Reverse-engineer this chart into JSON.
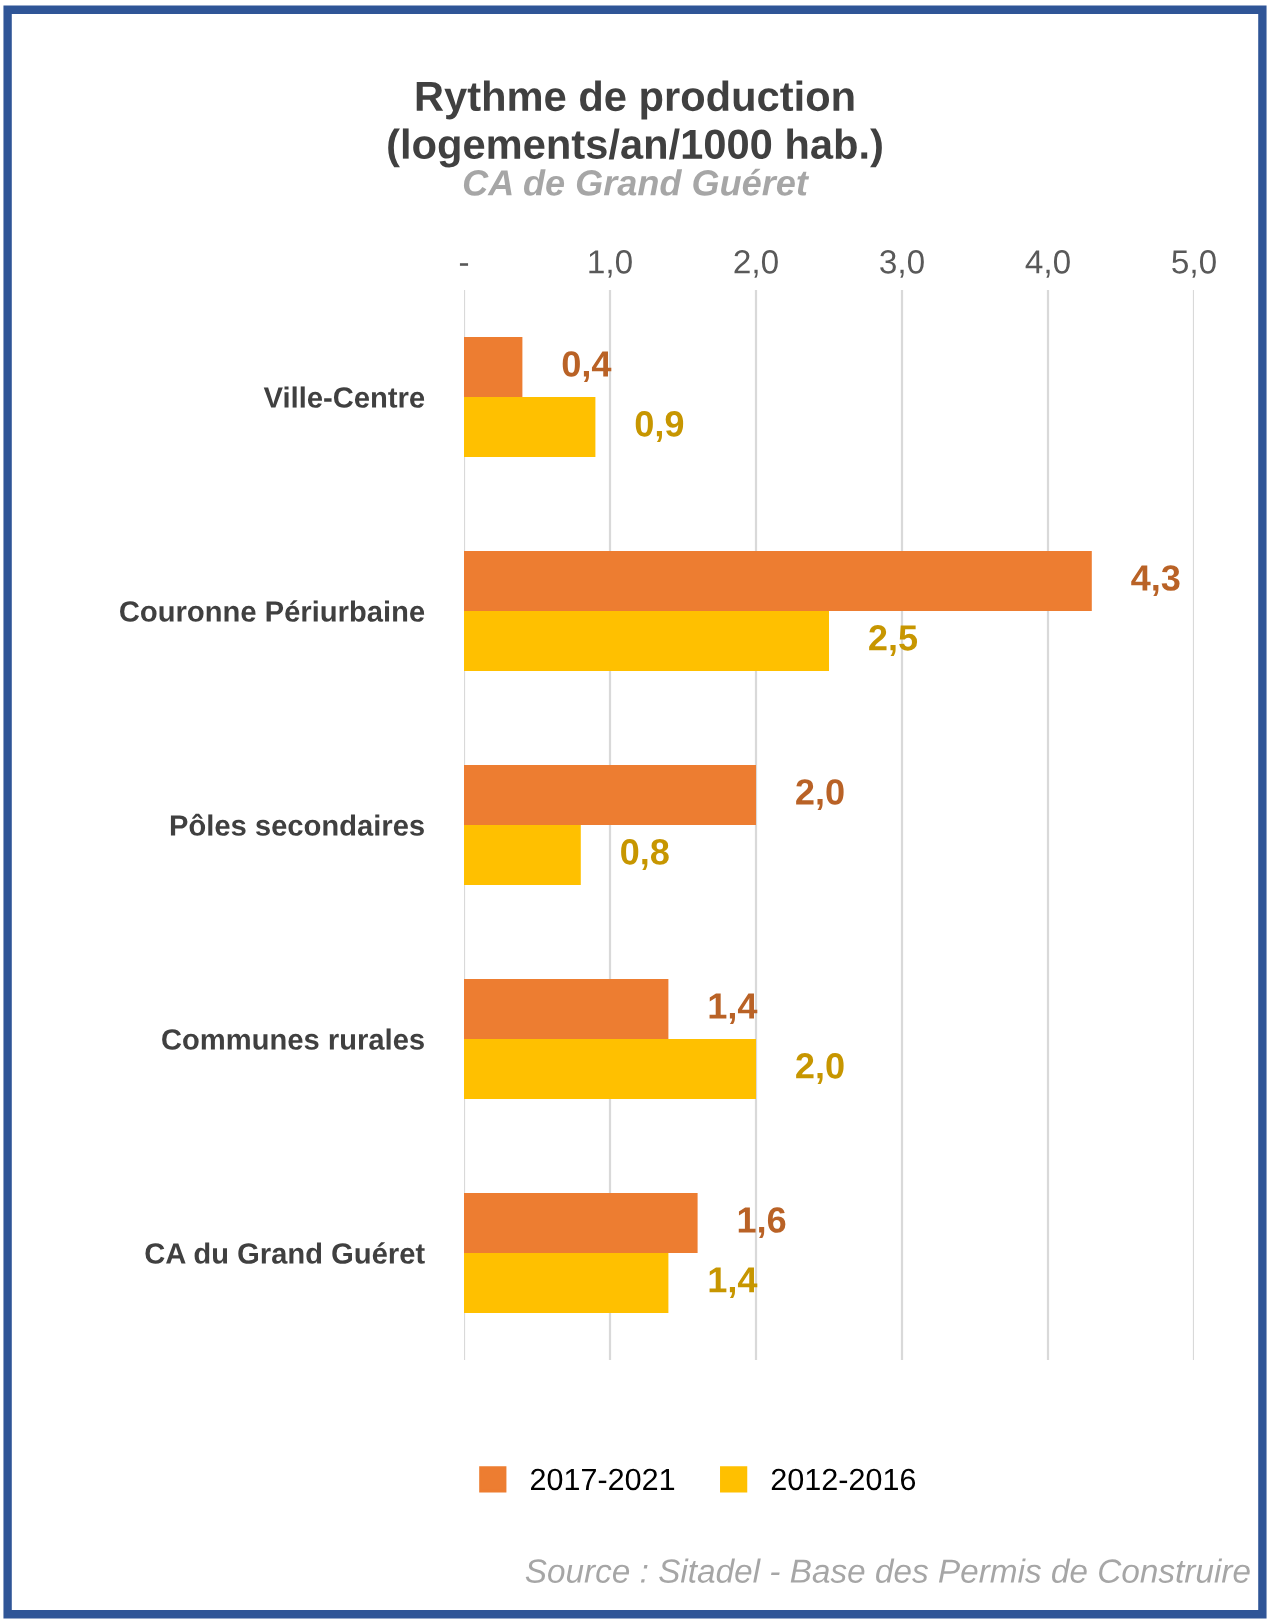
{
  "chart_data": {
    "type": "bar",
    "orientation": "horizontal",
    "title": "Rythme de production\n(logements/an/1000 hab.)",
    "subtitle": "CA de Grand Guéret",
    "categories": [
      "Ville-Centre",
      "Couronne Périurbaine",
      "Pôles secondaires",
      "Communes rurales",
      "CA du Grand Guéret"
    ],
    "series": [
      {
        "name": "2017-2021",
        "color": "#ed7d31",
        "values": [
          0.4,
          4.3,
          2.0,
          1.4,
          1.6
        ],
        "value_labels": [
          "0,4",
          "4,3",
          "2,0",
          "1,4",
          "1,6"
        ]
      },
      {
        "name": "2012-2016",
        "color": "#ffc000",
        "values": [
          0.9,
          2.5,
          0.8,
          2.0,
          1.4
        ],
        "value_labels": [
          "0,9",
          "2,5",
          "0,8",
          "2,0",
          "1,4"
        ]
      }
    ],
    "xlim": [
      0,
      5
    ],
    "xticks": [
      {
        "value": 0,
        "label": "-"
      },
      {
        "value": 1,
        "label": "1,0"
      },
      {
        "value": 2,
        "label": "2,0"
      },
      {
        "value": 3,
        "label": "3,0"
      },
      {
        "value": 4,
        "label": "4,0"
      },
      {
        "value": 5,
        "label": "5,0"
      }
    ],
    "grid": "x",
    "legend": "bottom",
    "annotations": [
      "Source : Sitadel - Base des Permis de Construire"
    ]
  }
}
